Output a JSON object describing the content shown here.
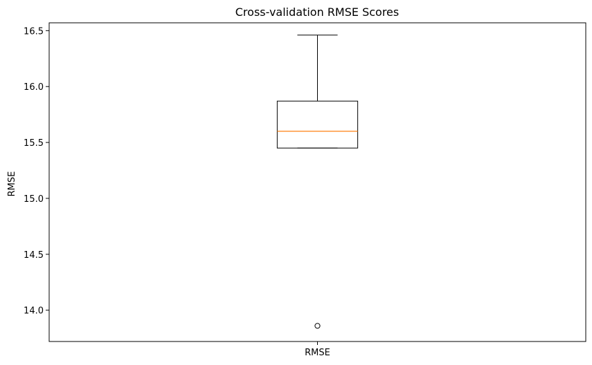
{
  "chart_data": {
    "type": "box",
    "title": "Cross-validation RMSE Scores",
    "xlabel": "",
    "ylabel": "RMSE",
    "categories": [
      "RMSE"
    ],
    "ylim": [
      13.72,
      16.57
    ],
    "yticks": [
      "14.0",
      "14.5",
      "15.0",
      "15.5",
      "16.0",
      "16.5"
    ],
    "grid": false,
    "series": [
      {
        "whisker_low": 15.45,
        "q1": 15.45,
        "median": 15.6,
        "q3": 15.87,
        "whisker_high": 16.46,
        "outliers": [
          13.86
        ]
      }
    ],
    "colors": {
      "box": "#000000",
      "median": "#ff7f0e",
      "outlier": "#000000"
    }
  }
}
